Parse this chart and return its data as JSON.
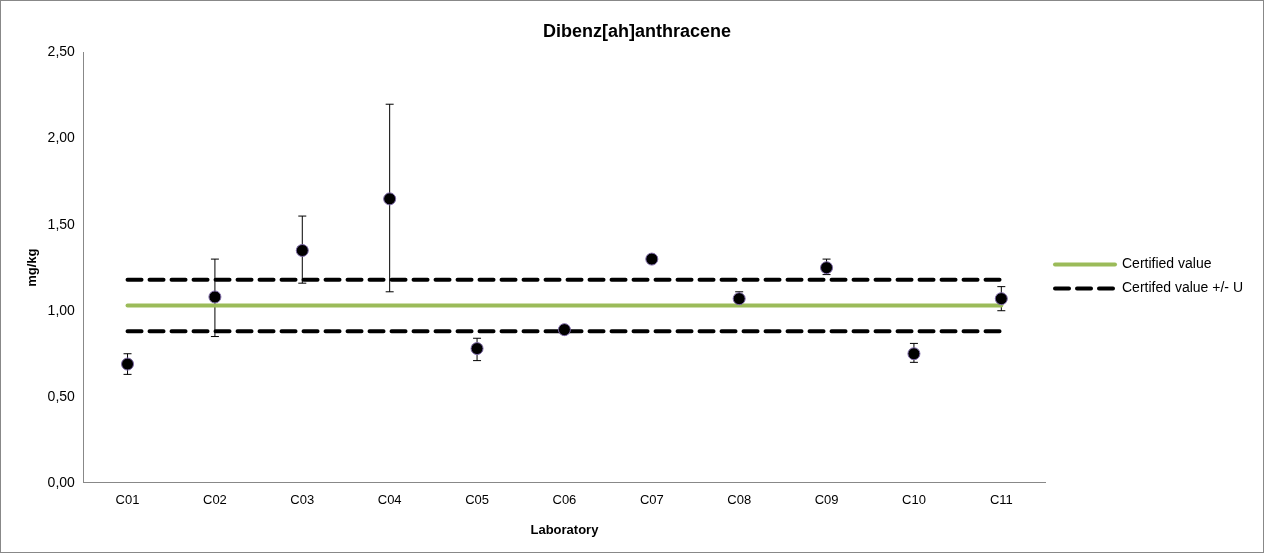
{
  "chart_data": {
    "type": "scatter",
    "title": "Dibenz[ah]anthracene",
    "xlabel": "Laboratory",
    "ylabel": "mg/kg",
    "categories": [
      "C01",
      "C02",
      "C03",
      "C04",
      "C05",
      "C06",
      "C07",
      "C08",
      "C09",
      "C10",
      "C11"
    ],
    "series": [
      {
        "color": "#000000",
        "marker": "circle",
        "values": [
          0.69,
          1.08,
          1.35,
          1.65,
          0.78,
          0.89,
          1.3,
          1.07,
          1.25,
          0.75,
          1.07
        ],
        "errors": [
          [
            0.63,
            0.75
          ],
          [
            0.85,
            1.3
          ],
          [
            1.16,
            1.55
          ],
          [
            1.11,
            2.2
          ],
          [
            0.71,
            0.84
          ],
          null,
          null,
          [
            1.05,
            1.11
          ],
          [
            1.21,
            1.3
          ],
          [
            0.7,
            0.81
          ],
          [
            1.0,
            1.14
          ]
        ]
      },
      {
        "type": "line",
        "name": "Certified value",
        "marker": "none",
        "color": "#9bbb59",
        "line_style": "solid",
        "values": [
          1.03,
          1.03,
          1.03,
          1.03,
          1.03,
          1.03,
          1.03,
          1.03,
          1.03,
          1.03,
          1.03
        ]
      },
      {
        "type": "line",
        "name": "Certifed value +/- U",
        "marker": "none",
        "color": "#000000",
        "line_style": "dashed",
        "values": [
          1.18,
          1.18,
          1.18,
          1.18,
          1.18,
          1.18,
          1.18,
          1.18,
          1.18,
          1.18,
          1.18
        ]
      },
      {
        "type": "line",
        "marker": "none",
        "color": "#000000",
        "line_style": "dashed",
        "values": [
          0.88,
          0.88,
          0.88,
          0.88,
          0.88,
          0.88,
          0.88,
          0.88,
          0.88,
          0.88,
          0.88
        ]
      }
    ],
    "ylim": [
      0,
      2.5
    ],
    "yticks": [
      {
        "value": 0,
        "label": "0,00"
      },
      {
        "value": 0.5,
        "label": "0,50"
      },
      {
        "value": 1,
        "label": "1,00"
      },
      {
        "value": 1.5,
        "label": "1,50"
      },
      {
        "value": 2,
        "label": "2,00"
      },
      {
        "value": 2.5,
        "label": "2,50"
      }
    ],
    "grid": false,
    "legend": "right"
  }
}
